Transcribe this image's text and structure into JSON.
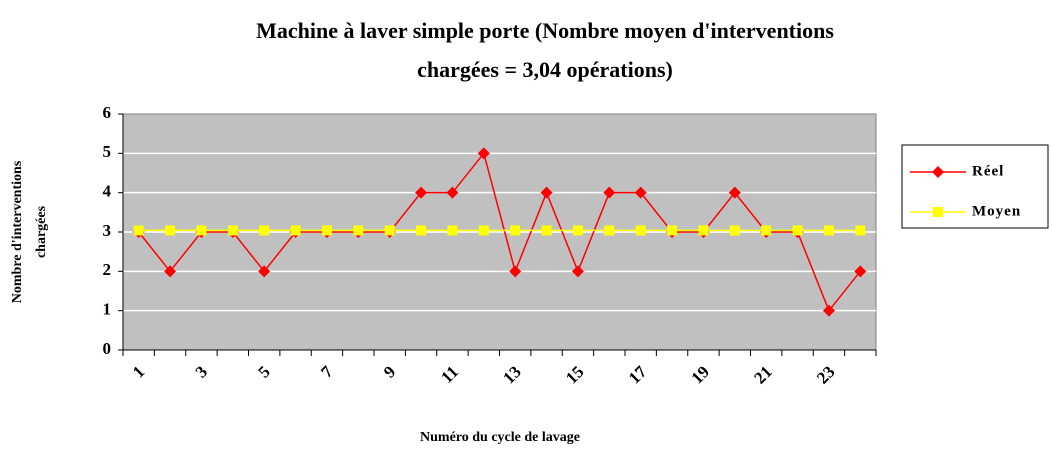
{
  "chart_data": {
    "type": "line",
    "title": [
      "Machine à laver simple porte (Nombre moyen d'interventions",
      "chargées = 3,04 opérations)"
    ],
    "x_label": "Numéro du cycle de lavage",
    "y_label": [
      "Nombre d'interventions",
      "chargées"
    ],
    "categories": [
      "1",
      null,
      "3",
      null,
      "5",
      null,
      "7",
      null,
      "9",
      null,
      "11",
      null,
      "13",
      null,
      "15",
      null,
      "17",
      null,
      "19",
      null,
      "21",
      null,
      "23",
      null
    ],
    "series": [
      {
        "name": "Réel",
        "color": "#ff0000",
        "marker": "diamond",
        "values": [
          3,
          2,
          3,
          3,
          2,
          3,
          3,
          3,
          3,
          4,
          4,
          5,
          2,
          4,
          2,
          4,
          4,
          3,
          3,
          4,
          3,
          3,
          1,
          2
        ]
      },
      {
        "name": "Moyen",
        "color": "#ffff00",
        "marker": "square",
        "values": [
          3.04,
          3.04,
          3.04,
          3.04,
          3.04,
          3.04,
          3.04,
          3.04,
          3.04,
          3.04,
          3.04,
          3.04,
          3.04,
          3.04,
          3.04,
          3.04,
          3.04,
          3.04,
          3.04,
          3.04,
          3.04,
          3.04,
          3.04,
          3.04
        ]
      }
    ],
    "ylim": [
      0,
      6
    ],
    "yticks": [
      0,
      1,
      2,
      3,
      4,
      5,
      6
    ],
    "grid": true,
    "legend": "right"
  }
}
